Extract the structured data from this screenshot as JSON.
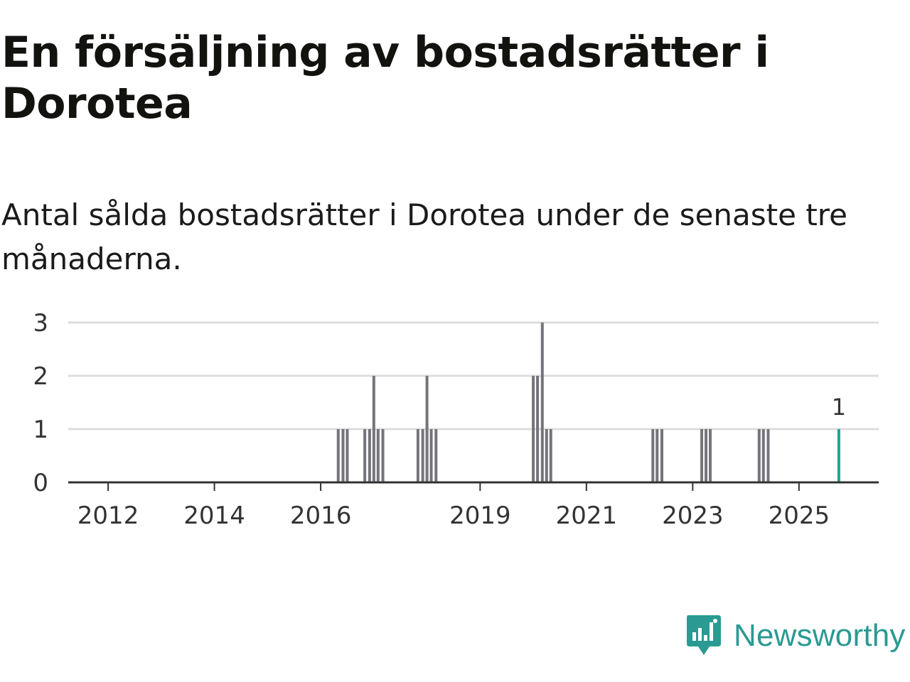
{
  "title": "En försäljning av bostadsrätter i Dorotea",
  "subtitle": "Antal sålda bostadsrätter i Dorotea under de senaste tre månaderna.",
  "brand": {
    "name": "Newsworthy"
  },
  "colors": {
    "bar": "#75747c",
    "highlight": "#20a39b",
    "grid": "#dddddd",
    "axis": "#333333",
    "text": "#333333"
  },
  "chart_data": {
    "type": "bar",
    "title": "En försäljning av bostadsrätter i Dorotea",
    "subtitle": "Antal sålda bostadsrätter i Dorotea under de senaste tre månaderna.",
    "xlabel": "",
    "ylabel": "",
    "xlim": [
      2011.25,
      2026.5
    ],
    "ylim": [
      0,
      3
    ],
    "yticks": [
      0,
      1,
      2,
      3
    ],
    "xticks": [
      2012,
      2014,
      2016,
      2019,
      2021,
      2023,
      2025
    ],
    "grid": true,
    "series": [
      {
        "name": "Antal sålda bostadsrätter",
        "points": [
          {
            "x": 2016.33,
            "value": 1
          },
          {
            "x": 2016.42,
            "value": 1
          },
          {
            "x": 2016.5,
            "value": 1
          },
          {
            "x": 2016.83,
            "value": 1
          },
          {
            "x": 2016.92,
            "value": 1
          },
          {
            "x": 2017.0,
            "value": 2
          },
          {
            "x": 2017.08,
            "value": 1
          },
          {
            "x": 2017.17,
            "value": 1
          },
          {
            "x": 2017.83,
            "value": 1
          },
          {
            "x": 2017.92,
            "value": 1
          },
          {
            "x": 2018.0,
            "value": 2
          },
          {
            "x": 2018.08,
            "value": 1
          },
          {
            "x": 2018.17,
            "value": 1
          },
          {
            "x": 2020.0,
            "value": 2
          },
          {
            "x": 2020.08,
            "value": 2
          },
          {
            "x": 2020.17,
            "value": 3
          },
          {
            "x": 2020.25,
            "value": 1
          },
          {
            "x": 2020.33,
            "value": 1
          },
          {
            "x": 2022.25,
            "value": 1
          },
          {
            "x": 2022.33,
            "value": 1
          },
          {
            "x": 2022.42,
            "value": 1
          },
          {
            "x": 2023.17,
            "value": 1
          },
          {
            "x": 2023.25,
            "value": 1
          },
          {
            "x": 2023.33,
            "value": 1
          },
          {
            "x": 2024.25,
            "value": 1
          },
          {
            "x": 2024.33,
            "value": 1
          },
          {
            "x": 2024.42,
            "value": 1
          },
          {
            "x": 2025.75,
            "value": 1,
            "highlight": true,
            "label": "1"
          }
        ]
      }
    ]
  }
}
